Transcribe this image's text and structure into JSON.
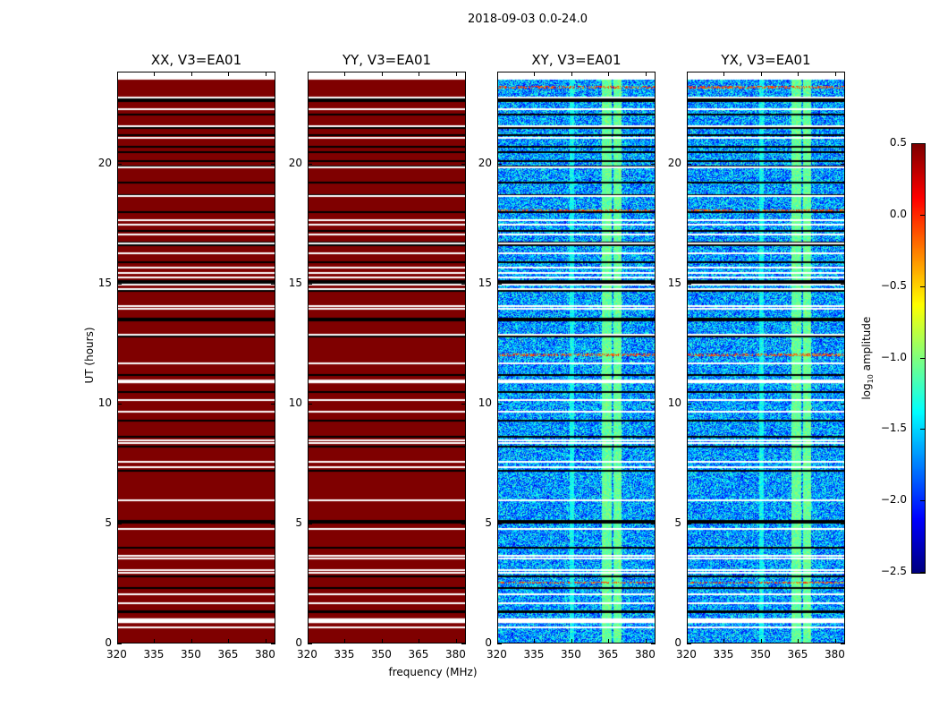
{
  "suptitle": "2018-09-03 0.0-24.0",
  "ylabel": "UT (hours)",
  "xlabel": "frequency (MHz)",
  "colorbar": {
    "label_main": "log",
    "label_sub": "10",
    "label_rest": " amplitude",
    "range": [
      -2.5,
      0.5
    ],
    "ticks": [
      "0.5",
      "0.0",
      "−0.5",
      "−1.0",
      "−1.5",
      "−2.0",
      "−2.5"
    ],
    "tick_values": [
      0.5,
      0.0,
      -0.5,
      -1.0,
      -1.5,
      -2.0,
      -2.5
    ],
    "colormap": "jet"
  },
  "chart_data": [
    {
      "type": "heatmap",
      "title": "XX, V3=EA01",
      "xlim": [
        320,
        384
      ],
      "ylim": [
        0,
        23.84
      ],
      "data_top": 23.5,
      "xticks": [
        "320",
        "335",
        "350",
        "365",
        "380"
      ],
      "xtick_values": [
        320,
        335,
        350,
        365,
        380
      ],
      "yticks": [
        "0",
        "5",
        "10",
        "15",
        "20"
      ],
      "ytick_values": [
        0,
        5,
        10,
        15,
        20
      ],
      "mode": "saturated",
      "value": 0.5
    },
    {
      "type": "heatmap",
      "title": "YY, V3=EA01",
      "xlim": [
        320,
        384
      ],
      "ylim": [
        0,
        23.84
      ],
      "data_top": 23.5,
      "xticks": [
        "320",
        "335",
        "350",
        "365",
        "380"
      ],
      "xtick_values": [
        320,
        335,
        350,
        365,
        380
      ],
      "yticks": [
        "0",
        "5",
        "10",
        "15",
        "20"
      ],
      "ytick_values": [
        0,
        5,
        10,
        15,
        20
      ],
      "mode": "saturated",
      "value": 0.5
    },
    {
      "type": "heatmap",
      "title": "XY, V3=EA01",
      "xlim": [
        320,
        384
      ],
      "ylim": [
        0,
        23.84
      ],
      "data_top": 23.5,
      "xticks": [
        "320",
        "335",
        "350",
        "365",
        "380"
      ],
      "xtick_values": [
        320,
        335,
        350,
        365,
        380
      ],
      "yticks": [
        "0",
        "5",
        "10",
        "15",
        "20"
      ],
      "ytick_values": [
        0,
        5,
        10,
        15,
        20
      ],
      "mode": "noise",
      "noise_range": [
        -2.2,
        -1.1
      ],
      "bands_mhz": [
        [
          349,
          351,
          -1.2
        ],
        [
          362,
          366,
          -0.9
        ],
        [
          367,
          370,
          -0.9
        ]
      ],
      "rfi_hours": [
        2.55,
        12.05,
        18.05,
        23.2
      ]
    },
    {
      "type": "heatmap",
      "title": "YX, V3=EA01",
      "xlim": [
        320,
        384
      ],
      "ylim": [
        0,
        23.84
      ],
      "data_top": 23.5,
      "xticks": [
        "320",
        "335",
        "350",
        "365",
        "380"
      ],
      "xtick_values": [
        320,
        335,
        350,
        365,
        380
      ],
      "yticks": [
        "0",
        "5",
        "10",
        "15",
        "20"
      ],
      "ytick_values": [
        0,
        5,
        10,
        15,
        20
      ],
      "mode": "noise",
      "noise_range": [
        -2.2,
        -1.1
      ],
      "bands_mhz": [
        [
          349,
          351,
          -1.2
        ],
        [
          362,
          366,
          -0.9
        ],
        [
          367,
          370,
          -0.9
        ]
      ],
      "rfi_hours": [
        2.55,
        12.05,
        18.05,
        23.2
      ]
    }
  ],
  "flagged_hours_white": [
    [
      0.85,
      1.05
    ],
    0.7,
    1.7,
    2.1,
    3.0,
    3.1,
    3.6,
    3.7,
    4.8,
    6.0,
    7.4,
    7.6,
    8.4,
    8.5,
    9.7,
    10.2,
    [
      10.85,
      11.0
    ],
    11.7,
    12.9,
    14.0,
    14.1,
    14.8,
    15.0,
    15.3,
    15.5,
    15.7,
    16.3,
    16.7,
    17.1,
    17.5,
    17.7,
    18.7,
    19.9,
    21.1,
    21.6,
    22.3,
    22.8
  ],
  "gaps_hours_black": [
    1.3,
    1.35,
    2.3,
    2.8,
    4.0,
    5.05,
    5.1,
    7.2,
    8.2,
    8.6,
    9.3,
    10.5,
    11.2,
    12.8,
    12.85,
    13.45,
    13.5,
    13.55,
    14.7,
    15.05,
    15.1,
    15.9,
    16.6,
    16.7,
    17.2,
    18.0,
    18.7,
    19.2,
    19.9,
    20.1,
    20.5,
    20.7,
    21.2,
    21.5,
    22.05,
    22.6,
    22.7
  ]
}
